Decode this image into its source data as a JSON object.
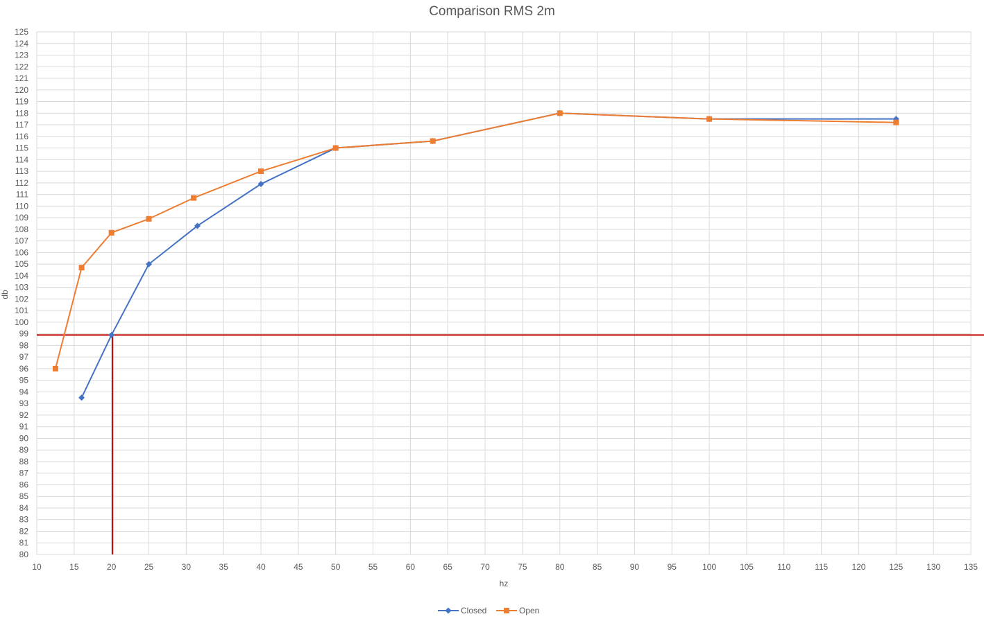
{
  "chart_data": {
    "type": "scatter",
    "title": "Comparison RMS 2m",
    "xlabel": "hz",
    "ylabel": "db",
    "xlim": [
      10,
      135
    ],
    "ylim": [
      80,
      125
    ],
    "xtick_step": 5,
    "ytick_step": 1,
    "grid": true,
    "legend_position": "bottom",
    "series": [
      {
        "name": "Closed",
        "color": "#4472C4",
        "marker": "diamond",
        "points": [
          [
            16,
            93.5
          ],
          [
            20,
            98.9
          ],
          [
            25,
            105
          ],
          [
            31.5,
            108.3
          ],
          [
            40,
            111.9
          ],
          [
            50,
            115
          ],
          [
            63,
            115.6
          ],
          [
            80,
            118
          ],
          [
            100,
            117.5
          ],
          [
            125,
            117.5
          ]
        ]
      },
      {
        "name": "Open",
        "color": "#ED7D31",
        "marker": "square",
        "points": [
          [
            12.5,
            96
          ],
          [
            16,
            104.7
          ],
          [
            20,
            107.7
          ],
          [
            25,
            108.9
          ],
          [
            31,
            110.7
          ],
          [
            40,
            113
          ],
          [
            50,
            115
          ],
          [
            63,
            115.6
          ],
          [
            80,
            118
          ],
          [
            100,
            117.5
          ],
          [
            125,
            117.2
          ]
        ]
      }
    ],
    "reference_lines": {
      "color": "#C00000",
      "horizontal_y": 98.9,
      "vertical_x": 20
    }
  }
}
